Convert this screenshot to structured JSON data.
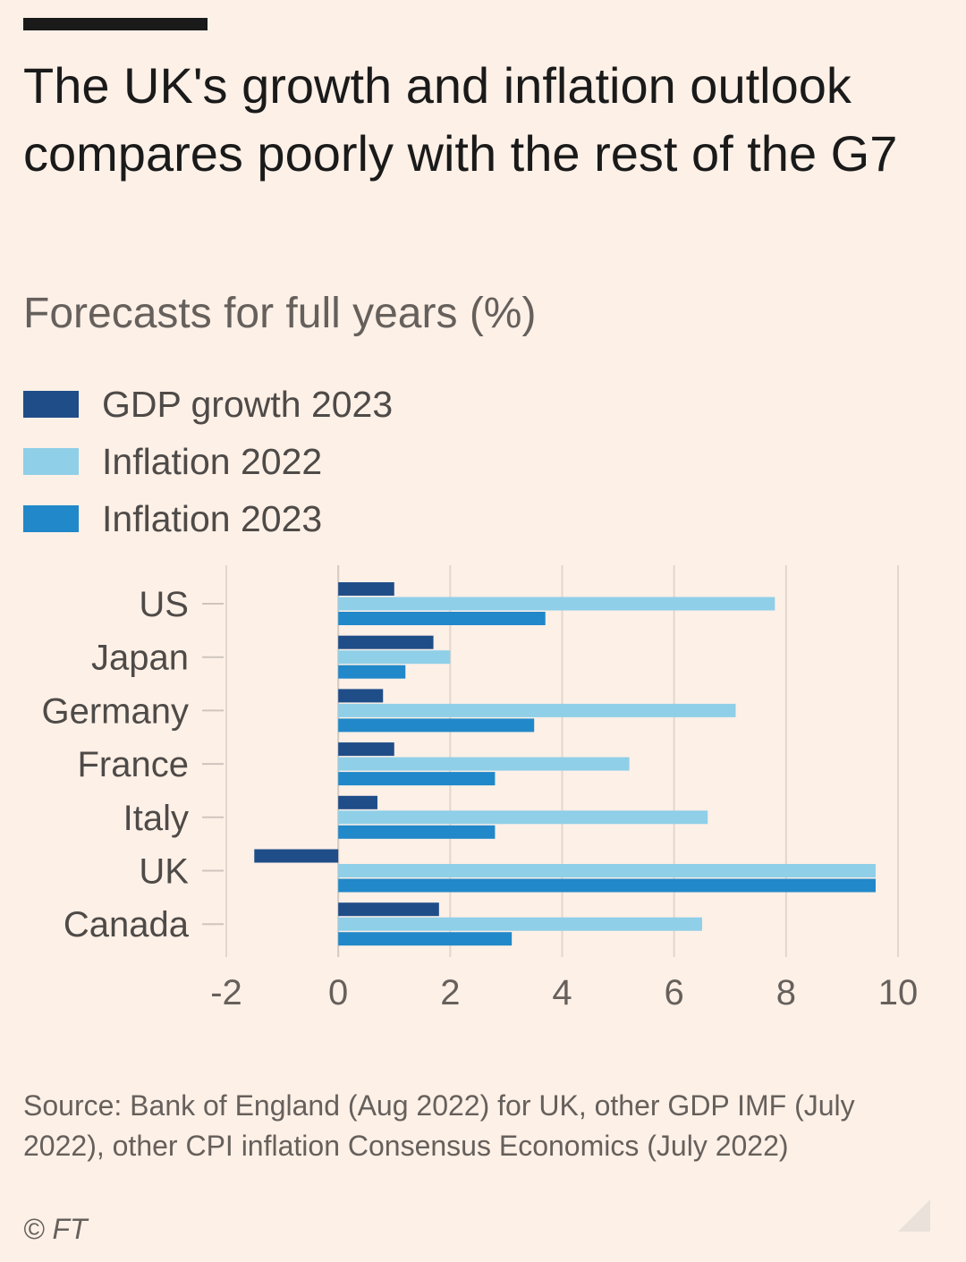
{
  "header": {
    "title": "The UK's growth and inflation outlook compares poorly with the rest of the G7",
    "subtitle": "Forecasts for full years (%)"
  },
  "legend": [
    {
      "label": "GDP growth 2023",
      "color": "#1f4d88"
    },
    {
      "label": "Inflation 2022",
      "color": "#8fcfe8"
    },
    {
      "label": "Inflation 2023",
      "color": "#2188c9"
    }
  ],
  "chart_data": {
    "type": "bar",
    "orientation": "horizontal",
    "categories": [
      "US",
      "Japan",
      "Germany",
      "France",
      "Italy",
      "UK",
      "Canada"
    ],
    "series": [
      {
        "name": "GDP growth 2023",
        "values": [
          1.0,
          1.7,
          0.8,
          1.0,
          0.7,
          -1.5,
          1.8
        ],
        "color": "#1f4d88"
      },
      {
        "name": "Inflation 2022",
        "values": [
          7.8,
          2.0,
          7.1,
          5.2,
          6.6,
          9.6,
          6.5
        ],
        "color": "#8fcfe8"
      },
      {
        "name": "Inflation 2023",
        "values": [
          3.7,
          1.2,
          3.5,
          2.8,
          2.8,
          9.6,
          3.1
        ],
        "color": "#2188c9"
      }
    ],
    "xlim": [
      -2,
      10
    ],
    "xticks": [
      -2,
      0,
      2,
      4,
      6,
      8,
      10
    ],
    "grid": true,
    "legend_position": "top-left"
  },
  "footer": {
    "source": "Source: Bank of England (Aug 2022) for UK, other GDP IMF (July 2022), other CPI inflation Consensus Economics (July 2022)",
    "copyright": "© FT"
  }
}
